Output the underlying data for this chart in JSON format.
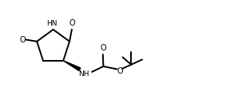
{
  "bg_color": "#ffffff",
  "line_color": "#000000",
  "line_width": 1.4,
  "figsize": [
    2.88,
    1.16
  ],
  "dpi": 100,
  "xlim": [
    0,
    10
  ],
  "ylim": [
    0,
    3.5
  ]
}
